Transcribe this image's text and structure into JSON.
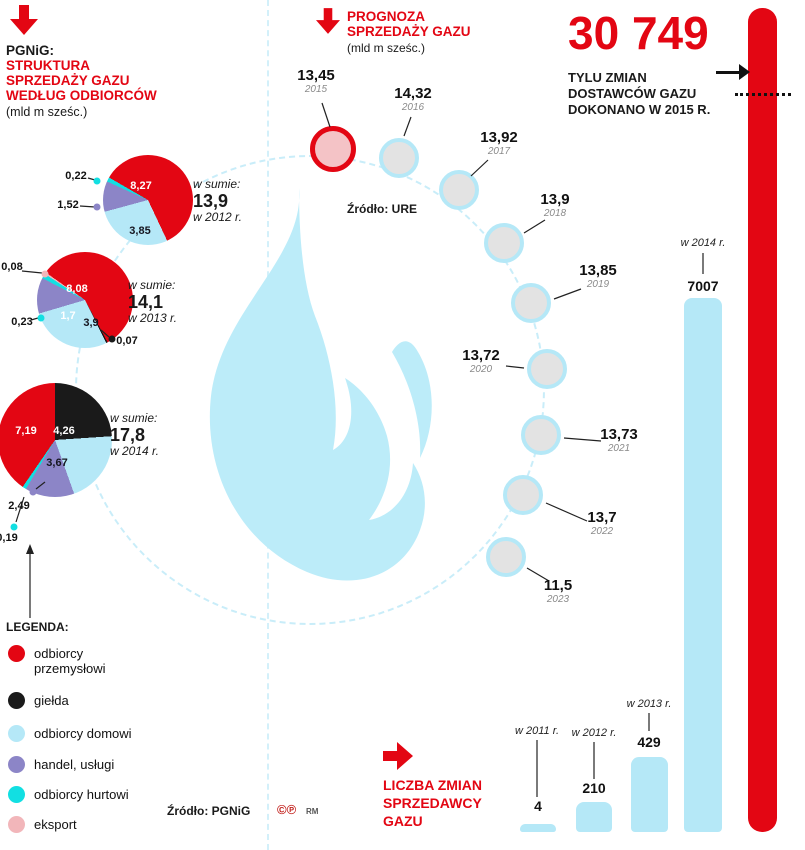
{
  "colors": {
    "red": "#e30613",
    "light_blue": "#b5e8f7",
    "flame_blue": "#bcecf9",
    "purple": "#8c85c7",
    "cyan": "#12dfe2",
    "black": "#1a1a1a",
    "pink": "#f2b6ba",
    "node_gray": "#e3e3e3"
  },
  "header_left": {
    "org": "PGNiG:",
    "title_lines": [
      "STRUKTURA",
      "SPRZEDAŻY GAZU",
      "WEDŁUG ODBIORCÓW"
    ],
    "unit": "(mld m sześc.)"
  },
  "header_center": {
    "title_lines": [
      "PROGNOZA",
      "SPRZEDAŻY GAZU"
    ],
    "unit": "(mld m sześc.)",
    "source": "Źródło: URE"
  },
  "header_right": {
    "big_number": "30 749",
    "caption_lines": [
      "TYLU ZMIAN",
      "DOSTAWCÓW GAZU",
      "DOKONANO W 2015 R."
    ]
  },
  "bars_section": {
    "title_lines": [
      "LICZBA ZMIAN",
      "SPRZEDAWCY",
      "GAZU"
    ]
  },
  "legend": {
    "title": "LEGENDA:",
    "items": [
      {
        "label": "odbiorcy przemysłowi",
        "color_key": "red"
      },
      {
        "label": "giełda",
        "color_key": "black"
      },
      {
        "label": "odbiorcy domowi",
        "color_key": "light_blue"
      },
      {
        "label": "handel, usługi",
        "color_key": "purple"
      },
      {
        "label": "odbiorcy hurtowi",
        "color_key": "cyan"
      },
      {
        "label": "eksport",
        "color_key": "pink"
      }
    ]
  },
  "footer": {
    "source": "Źródło: PGNiG",
    "marks": "©℗",
    "credit": "RM"
  },
  "chart_data": [
    {
      "type": "pie",
      "name": "struktura-sprzedazy-gazu-2012",
      "total_label": "w sumie:",
      "total": "13,9",
      "total_value": 13.9,
      "year_label": "w 2012 r.",
      "unit": "mld m sześc.",
      "slices": [
        {
          "category": "odbiorcy przemysłowi",
          "label": "8,27",
          "value": 8.27,
          "color_key": "red"
        },
        {
          "category": "odbiorcy domowi",
          "label": "3,85",
          "value": 3.85,
          "color_key": "light_blue"
        },
        {
          "category": "handel, usługi",
          "label": "1,52",
          "value": 1.52,
          "color_key": "purple"
        },
        {
          "category": "odbiorcy hurtowi",
          "label": "0,22",
          "value": 0.22,
          "color_key": "cyan"
        }
      ]
    },
    {
      "type": "pie",
      "name": "struktura-sprzedazy-gazu-2013",
      "total_label": "w sumie:",
      "total": "14,1",
      "total_value": 14.1,
      "year_label": "w 2013 r.",
      "unit": "mld m sześc.",
      "slices": [
        {
          "category": "odbiorcy przemysłowi",
          "label": "8,08",
          "value": 8.08,
          "color_key": "red"
        },
        {
          "category": "giełda",
          "label": "0,07",
          "value": 0.07,
          "color_key": "black"
        },
        {
          "category": "odbiorcy domowi",
          "label": "3,9",
          "value": 3.9,
          "color_key": "light_blue"
        },
        {
          "category": "handel, usługi",
          "label": "1,7",
          "value": 1.7,
          "color_key": "purple"
        },
        {
          "category": "odbiorcy hurtowi",
          "label": "0,23",
          "value": 0.23,
          "color_key": "cyan"
        },
        {
          "category": "eksport",
          "label": "0,08",
          "value": 0.08,
          "color_key": "pink"
        }
      ]
    },
    {
      "type": "pie",
      "name": "struktura-sprzedazy-gazu-2014",
      "total_label": "w sumie:",
      "total": "17,8",
      "total_value": 17.8,
      "year_label": "w 2014 r.",
      "unit": "mld m sześc.",
      "slices": [
        {
          "category": "giełda",
          "label": "4,26",
          "value": 4.26,
          "color_key": "black"
        },
        {
          "category": "odbiorcy domowi",
          "label": "3,67",
          "value": 3.67,
          "color_key": "light_blue"
        },
        {
          "category": "handel, usługi",
          "label": "2,49",
          "value": 2.49,
          "color_key": "purple"
        },
        {
          "category": "odbiorcy hurtowi",
          "label": "0,19",
          "value": 0.19,
          "color_key": "cyan"
        },
        {
          "category": "odbiorcy przemysłowi",
          "label": "7,19",
          "value": 7.19,
          "color_key": "red"
        }
      ]
    },
    {
      "type": "line",
      "name": "prognoza-sprzedazy-gazu",
      "unit": "mld m sześc.",
      "layout_hint": "points-on-arc-clockwise",
      "points": [
        {
          "year": "2015",
          "label": "13,45",
          "value": 13.45,
          "highlight": true
        },
        {
          "year": "2016",
          "label": "14,32",
          "value": 14.32
        },
        {
          "year": "2017",
          "label": "13,92",
          "value": 13.92
        },
        {
          "year": "2018",
          "label": "13,9",
          "value": 13.9
        },
        {
          "year": "2019",
          "label": "13,85",
          "value": 13.85
        },
        {
          "year": "2020",
          "label": "13,72",
          "value": 13.72
        },
        {
          "year": "2021",
          "label": "13,73",
          "value": 13.73
        },
        {
          "year": "2022",
          "label": "13,7",
          "value": 13.7
        },
        {
          "year": "2023",
          "label": "11,5",
          "value": 11.5
        }
      ]
    },
    {
      "type": "bar",
      "name": "liczba-zmian-sprzedawcy-gazu",
      "bars": [
        {
          "year_label": "w 2011 r.",
          "label": "4",
          "value": 4,
          "color_key": "light_blue"
        },
        {
          "year_label": "w 2012 r.",
          "label": "210",
          "value": 210,
          "color_key": "light_blue"
        },
        {
          "year_label": "w 2013 r.",
          "label": "429",
          "value": 429,
          "color_key": "light_blue"
        },
        {
          "year_label": "w 2014 r.",
          "label": "7007",
          "value": 7007,
          "color_key": "light_blue"
        },
        {
          "year_label": "2015",
          "label": "30 749",
          "value": 30749,
          "color_key": "red"
        }
      ]
    }
  ]
}
